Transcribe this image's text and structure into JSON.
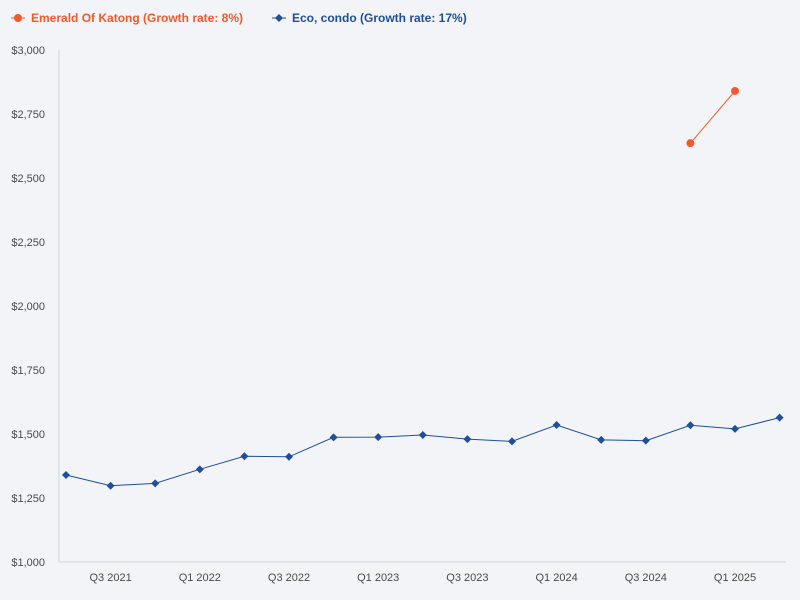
{
  "chart_data": {
    "type": "line",
    "title": "",
    "xlabel": "",
    "ylabel": "",
    "ylim": [
      1000,
      3000
    ],
    "yticks": [
      1000,
      1250,
      1500,
      1750,
      2000,
      2250,
      2500,
      2750,
      3000
    ],
    "ytick_labels": [
      "$1,000",
      "$1,250",
      "$1,500",
      "$1,750",
      "$2,000",
      "$2,250",
      "$2,500",
      "$2,750",
      "$3,000"
    ],
    "categories": [
      "Q2 2021",
      "Q3 2021",
      "Q4 2021",
      "Q1 2022",
      "Q2 2022",
      "Q3 2022",
      "Q4 2022",
      "Q1 2023",
      "Q2 2023",
      "Q3 2023",
      "Q4 2023",
      "Q1 2024",
      "Q2 2024",
      "Q3 2024",
      "Q4 2024",
      "Q1 2025",
      "Q2 2025"
    ],
    "xtick_labels": [
      "Q3 2021",
      "Q1 2022",
      "Q3 2022",
      "Q1 2023",
      "Q3 2023",
      "Q1 2024",
      "Q3 2024",
      "Q1 2025"
    ],
    "legend_position": "top-left",
    "series": [
      {
        "name": "Emerald Of Katong (Growth rate: 8%)",
        "color": "#f15a2b",
        "marker": "circle",
        "values": [
          null,
          null,
          null,
          null,
          null,
          null,
          null,
          null,
          null,
          null,
          null,
          null,
          null,
          null,
          2636,
          2840,
          null
        ]
      },
      {
        "name": "Eco, condo (Growth rate: 17%)",
        "color": "#1f4e9c",
        "marker": "diamond",
        "values": [
          1340,
          1298,
          1307,
          1362,
          1413,
          1411,
          1487,
          1488,
          1496,
          1480,
          1471,
          1535,
          1477,
          1474,
          1534,
          1520,
          1564
        ]
      }
    ]
  }
}
